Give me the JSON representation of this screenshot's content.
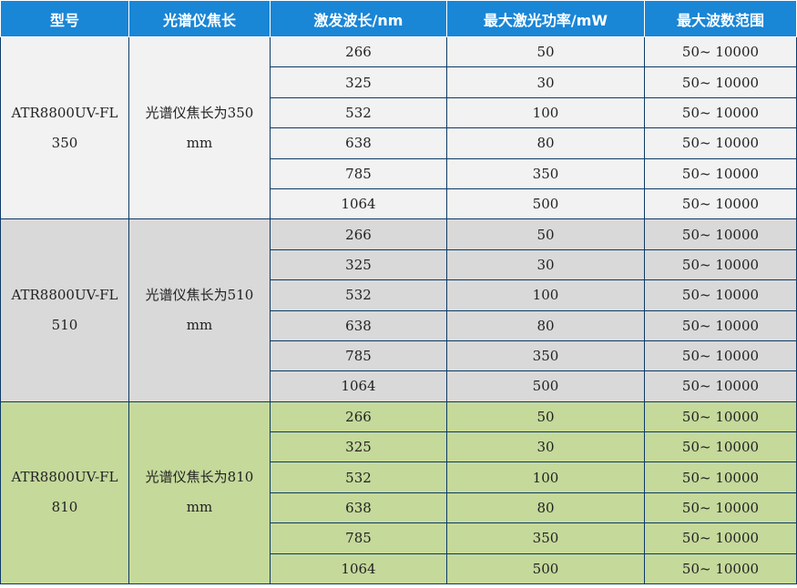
{
  "headers": {
    "model": "型号",
    "focal": "光谱仪焦长",
    "wavelength": "激发波长/nm",
    "power": "最大激光功率/mW",
    "range": "最大波数范围"
  },
  "groups": [
    {
      "model_line1": "ATR8800UV-FL",
      "model_line2": "350",
      "focal_line1": "光谱仪焦长为350",
      "focal_line2": "mm",
      "rows": [
        {
          "wavelength": "266",
          "power": "50",
          "range": "50~ 10000"
        },
        {
          "wavelength": "325",
          "power": "30",
          "range": "50~ 10000"
        },
        {
          "wavelength": "532",
          "power": "100",
          "range": "50~ 10000"
        },
        {
          "wavelength": "638",
          "power": "80",
          "range": "50~ 10000"
        },
        {
          "wavelength": "785",
          "power": "350",
          "range": "50~ 10000"
        },
        {
          "wavelength": "1064",
          "power": "500",
          "range": "50~ 10000"
        }
      ]
    },
    {
      "model_line1": "ATR8800UV-FL",
      "model_line2": "510",
      "focal_line1": "光谱仪焦长为510",
      "focal_line2": "mm",
      "rows": [
        {
          "wavelength": "266",
          "power": "50",
          "range": "50~ 10000"
        },
        {
          "wavelength": "325",
          "power": "30",
          "range": "50~ 10000"
        },
        {
          "wavelength": "532",
          "power": "100",
          "range": "50~ 10000"
        },
        {
          "wavelength": "638",
          "power": "80",
          "range": "50~ 10000"
        },
        {
          "wavelength": "785",
          "power": "350",
          "range": "50~ 10000"
        },
        {
          "wavelength": "1064",
          "power": "500",
          "range": "50~ 10000"
        }
      ]
    },
    {
      "model_line1": "ATR8800UV-FL",
      "model_line2": "810",
      "focal_line1": "光谱仪焦长为810",
      "focal_line2": "mm",
      "rows": [
        {
          "wavelength": "266",
          "power": "50",
          "range": "50~ 10000"
        },
        {
          "wavelength": "325",
          "power": "30",
          "range": "50~ 10000"
        },
        {
          "wavelength": "532",
          "power": "100",
          "range": "50~ 10000"
        },
        {
          "wavelength": "638",
          "power": "80",
          "range": "50~ 10000"
        },
        {
          "wavelength": "785",
          "power": "350",
          "range": "50~ 10000"
        },
        {
          "wavelength": "1064",
          "power": "500",
          "range": "50~ 10000"
        }
      ]
    }
  ],
  "colors": {
    "header_bg": "#1a86d6",
    "header_text": "#ffffff",
    "group_backgrounds": [
      "#f2f2f2",
      "#d9d9d9",
      "#c5d99b"
    ],
    "border": "#0d3a66"
  }
}
